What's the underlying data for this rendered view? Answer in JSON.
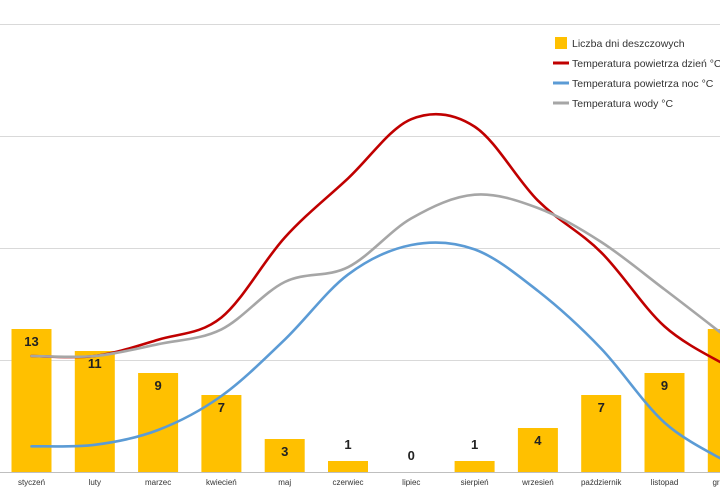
{
  "chart_data": {
    "type": "bar+line",
    "categories": [
      "styczeń",
      "luty",
      "marzec",
      "kwiecień",
      "maj",
      "czerwiec",
      "lipiec",
      "sierpień",
      "wrzesień",
      "październik",
      "listopad",
      "grudzień"
    ],
    "series": [
      {
        "name": "Liczba dni deszczowych",
        "type": "bar",
        "color": "#FFC000",
        "values": [
          13,
          11,
          9,
          7,
          3,
          1,
          0,
          1,
          4,
          7,
          9,
          13
        ]
      },
      {
        "name": "Temperatura powietrza dzień °C",
        "type": "line",
        "color": "#C00000",
        "values": [
          15,
          15,
          16.1,
          17.6,
          23,
          27,
          31,
          30.5,
          25.5,
          22,
          17,
          14.3
        ]
      },
      {
        "name": "Temperatura powietrza noc °C",
        "type": "line",
        "color": "#5B9BD5",
        "values": [
          8.9,
          9,
          10,
          12.3,
          16.1,
          20.5,
          22.5,
          22.2,
          19.4,
          15.5,
          10.5,
          7.8
        ]
      },
      {
        "name": "Temperatura wody °C",
        "type": "line",
        "color": "#A6A6A6",
        "values": [
          15,
          15,
          15.8,
          16.8,
          20,
          21,
          24.3,
          25.9,
          25,
          22.7,
          19.5,
          16.2
        ]
      }
    ],
    "grid": true,
    "legend_position": "top-right"
  }
}
